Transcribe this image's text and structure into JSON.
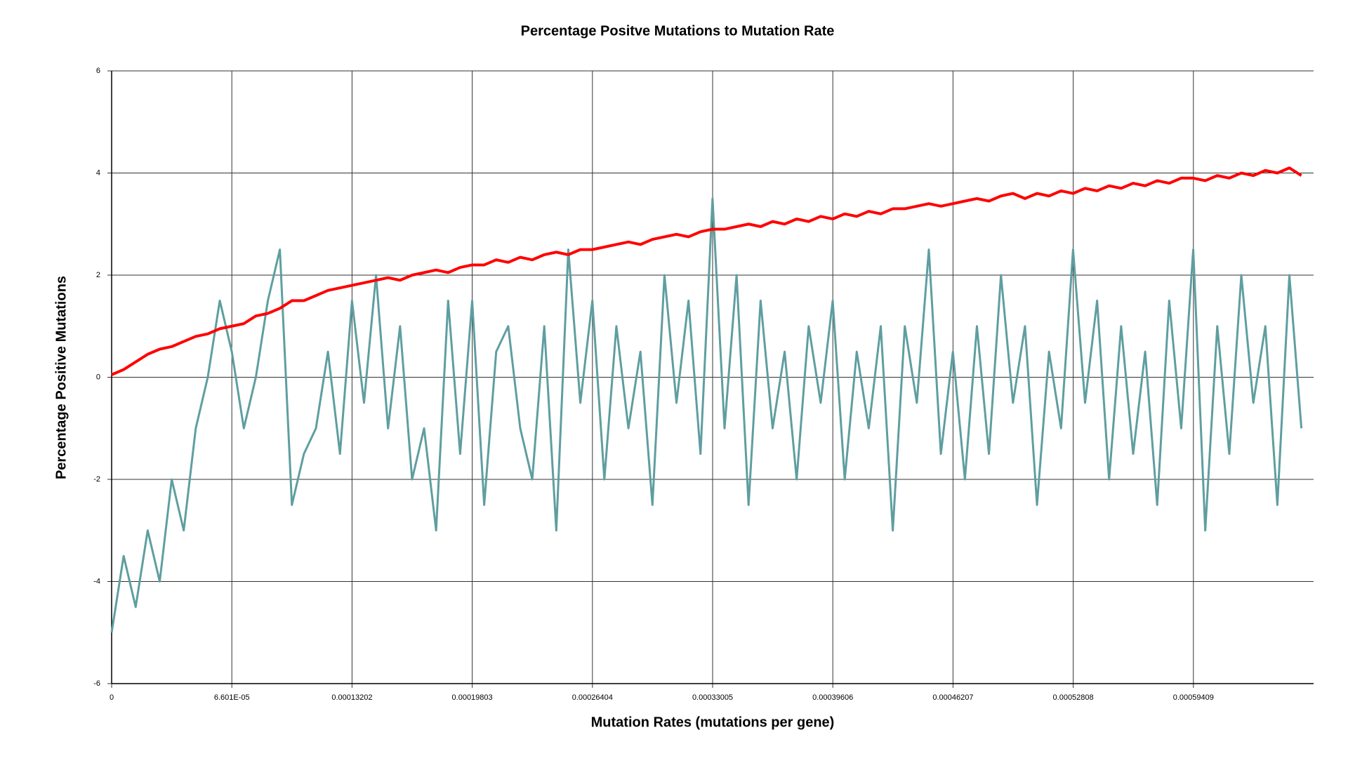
{
  "chart_data": {
    "type": "line",
    "title": "Percentage Positve Mutations to Mutation Rate",
    "x_label": "Mutation Rates (mutations per gene)",
    "y_label": "Percentage Positive Mutations",
    "xlim": [
      0,
      0.0006601
    ],
    "ylim": [
      -6,
      6
    ],
    "xticks": [
      0,
      {
        "value": 6.601e-05,
        "label": "6.601E-05"
      },
      0.00013202,
      0.00019803,
      0.00026404,
      0.00033005,
      0.00039606,
      0.00046207,
      0.00052808,
      0.00059409
    ],
    "yticks": [
      -6,
      -4,
      -2,
      0,
      2,
      4,
      6
    ],
    "grid": true,
    "x": [
      0,
      6.6e-06,
      1.32e-05,
      1.98e-05,
      2.64e-05,
      3.3e-05,
      3.96e-05,
      4.62e-05,
      5.28e-05,
      5.94e-05,
      6.6e-05,
      7.26e-05,
      7.92e-05,
      8.58e-05,
      9.24e-05,
      9.9e-05,
      0.0001056,
      0.0001122,
      0.0001188,
      0.0001254,
      0.000132,
      0.0001386,
      0.0001452,
      0.0001518,
      0.0001584,
      0.000165,
      0.0001716,
      0.0001782,
      0.0001848,
      0.0001914,
      0.000198,
      0.0002046,
      0.0002112,
      0.0002178,
      0.0002244,
      0.000231,
      0.0002376,
      0.0002442,
      0.0002508,
      0.0002574,
      0.000264,
      0.0002706,
      0.0002772,
      0.0002838,
      0.0002904,
      0.000297,
      0.0003036,
      0.0003102,
      0.0003168,
      0.0003234,
      0.00033,
      0.0003366,
      0.0003432,
      0.0003498,
      0.0003564,
      0.000363,
      0.0003696,
      0.0003762,
      0.0003828,
      0.0003894,
      0.000396,
      0.0004026,
      0.0004092,
      0.0004158,
      0.0004224,
      0.000429,
      0.0004356,
      0.0004422,
      0.0004488,
      0.0004554,
      0.000462,
      0.0004686,
      0.0004752,
      0.0004818,
      0.0004884,
      0.000495,
      0.0005016,
      0.0005082,
      0.0005148,
      0.0005214,
      0.000528,
      0.0005346,
      0.0005412,
      0.0005478,
      0.0005544,
      0.000561,
      0.0005676,
      0.0005742,
      0.0005808,
      0.0005874,
      0.000594,
      0.0006006,
      0.0006072,
      0.0006138,
      0.0006204,
      0.000627,
      0.0006336,
      0.0006402,
      0.0006468,
      0.0006534
    ],
    "series": [
      {
        "color": "#ff0000",
        "values": [
          0.05,
          0.15,
          0.3,
          0.45,
          0.55,
          0.6,
          0.7,
          0.8,
          0.85,
          0.95,
          1.0,
          1.05,
          1.2,
          1.25,
          1.35,
          1.5,
          1.5,
          1.6,
          1.7,
          1.75,
          1.8,
          1.85,
          1.9,
          1.95,
          1.9,
          2.0,
          2.05,
          2.1,
          2.05,
          2.15,
          2.2,
          2.2,
          2.3,
          2.25,
          2.35,
          2.3,
          2.4,
          2.45,
          2.4,
          2.5,
          2.5,
          2.55,
          2.6,
          2.65,
          2.6,
          2.7,
          2.75,
          2.8,
          2.75,
          2.85,
          2.9,
          2.9,
          2.95,
          3.0,
          2.95,
          3.05,
          3.0,
          3.1,
          3.05,
          3.15,
          3.1,
          3.2,
          3.15,
          3.25,
          3.2,
          3.3,
          3.3,
          3.35,
          3.4,
          3.35,
          3.4,
          3.45,
          3.5,
          3.45,
          3.55,
          3.6,
          3.5,
          3.6,
          3.55,
          3.65,
          3.6,
          3.7,
          3.65,
          3.75,
          3.7,
          3.8,
          3.75,
          3.85,
          3.8,
          3.9,
          3.9,
          3.85,
          3.95,
          3.9,
          4.0,
          3.95,
          4.05,
          4.0,
          4.1,
          3.95
        ]
      },
      {
        "color": "#5f9ea0",
        "values": [
          -5,
          -3.5,
          -4.5,
          -3,
          -4,
          -2,
          -3,
          -1,
          0,
          1.5,
          0.5,
          -1,
          0,
          1.5,
          2.5,
          -2.5,
          -1.5,
          -1,
          0.5,
          -1.5,
          1.5,
          -0.5,
          2,
          -1,
          1,
          -2,
          -1,
          -3,
          1.5,
          -1.5,
          1.5,
          -2.5,
          0.5,
          1,
          -1,
          -2,
          1,
          -3,
          2.5,
          -0.5,
          1.5,
          -2,
          1,
          -1,
          0.5,
          -2.5,
          2,
          -0.5,
          1.5,
          -1.5,
          3.5,
          -1,
          2,
          -2.5,
          1.5,
          -1,
          0.5,
          -2,
          1,
          -0.5,
          1.5,
          -2,
          0.5,
          -1,
          1,
          -3,
          1,
          -0.5,
          2.5,
          -1.5,
          0.5,
          -2,
          1,
          -1.5,
          2,
          -0.5,
          1,
          -2.5,
          0.5,
          -1,
          2.5,
          -0.5,
          1.5,
          -2,
          1,
          -1.5,
          0.5,
          -2.5,
          1.5,
          -1,
          2.5,
          -3,
          1,
          -1.5,
          2,
          -0.5,
          1,
          -2.5,
          2,
          -1
        ]
      }
    ]
  }
}
